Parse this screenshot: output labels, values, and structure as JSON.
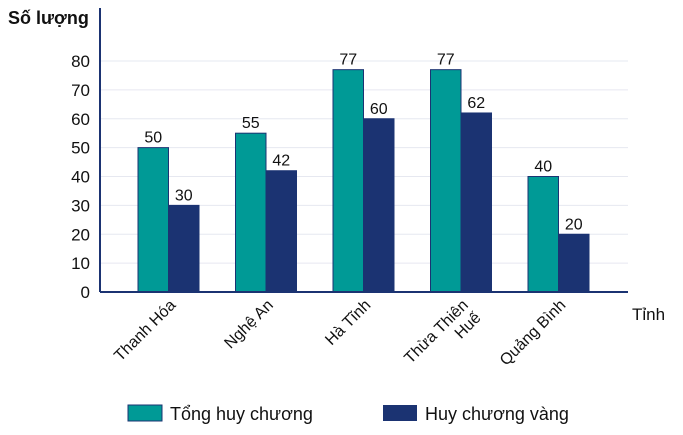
{
  "chart_data": {
    "type": "bar",
    "ylabel": "Số lượng",
    "xlabel": "Tỉnh",
    "categories": [
      "Thanh Hóa",
      "Nghệ An",
      "Hà Tĩnh",
      "Thừa Thiên Huế",
      "Quảng Bình"
    ],
    "category_lines": [
      [
        "Thanh Hóa"
      ],
      [
        "Nghệ An"
      ],
      [
        "Hà Tĩnh"
      ],
      [
        "Thừa Thiên",
        "Huế"
      ],
      [
        "Quảng Bình"
      ]
    ],
    "series": [
      {
        "name": "Tổng huy chương",
        "values": [
          50,
          55,
          77,
          77,
          40
        ],
        "color": "#009A96"
      },
      {
        "name": "Huy chương vàng",
        "values": [
          30,
          42,
          60,
          62,
          20
        ],
        "color": "#1B3372"
      }
    ],
    "ylim": [
      0,
      85
    ],
    "yticks": [
      0,
      10,
      20,
      30,
      40,
      50,
      60,
      70,
      80
    ],
    "grid": true,
    "legend": "bottom",
    "axis_color": "#1B3372",
    "grid_color": "#E6E8F0"
  }
}
